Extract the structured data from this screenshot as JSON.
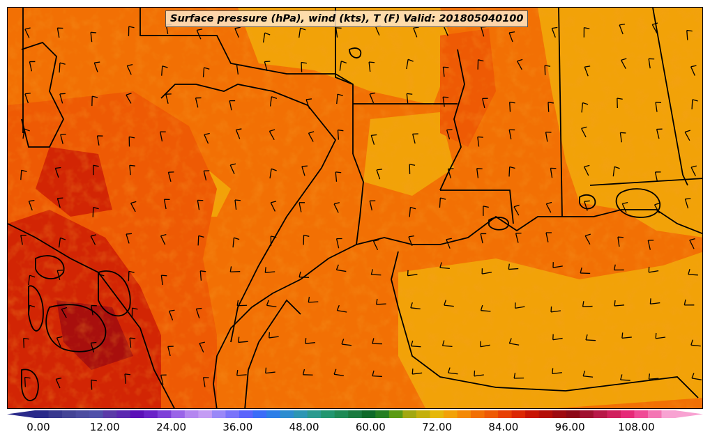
{
  "title": "Surface pressure (hPa), wind (kts), T (F) Valid: 201805040100",
  "colorbar": {
    "min": 0,
    "max": 115,
    "tick_labels": [
      "0.00",
      "12.00",
      "24.00",
      "36.00",
      "48.00",
      "60.00",
      "72.00",
      "84.00",
      "96.00",
      "108.00"
    ],
    "colors": [
      "#2a2a8a",
      "#38388f",
      "#444496",
      "#4c4ca0",
      "#5050aa",
      "#5a3aa8",
      "#5a28b0",
      "#5c10b8",
      "#6a22c8",
      "#7e40d8",
      "#9a64e8",
      "#b486f0",
      "#c49cf4",
      "#9a88f8",
      "#7a74fa",
      "#5a64fc",
      "#3a6cf8",
      "#2c7ee8",
      "#2c8cd0",
      "#2c96b4",
      "#2a9a90",
      "#229670",
      "#1e8a56",
      "#1a7a40",
      "#0e6a2a",
      "#247e22",
      "#5a9a14",
      "#a2a810",
      "#c4b00c",
      "#e6b80a",
      "#f2a208",
      "#f48a06",
      "#f27004",
      "#ee5a04",
      "#e84004",
      "#dc2804",
      "#c81404",
      "#b40e08",
      "#9e0a10",
      "#8c0816",
      "#a01030",
      "#b81848",
      "#d0205e",
      "#e62a78",
      "#f04a96",
      "#f476b4",
      "#f8a2d2"
    ]
  },
  "map": {
    "background_temperature_color": "#f27004",
    "warm_color": "#ee5a04",
    "cool_color": "#f2a208",
    "hot_color": "#c81404",
    "line_color": "#000000"
  }
}
